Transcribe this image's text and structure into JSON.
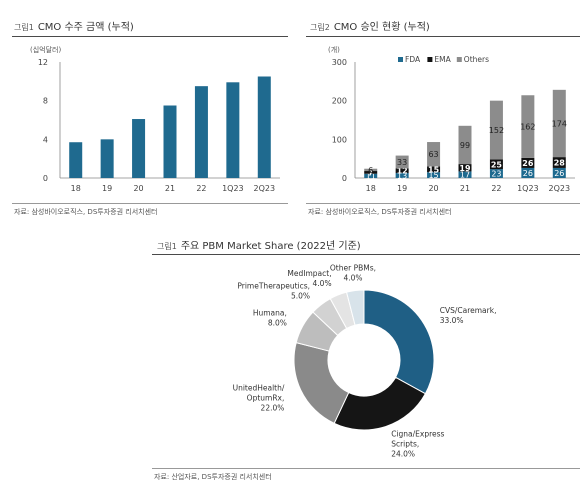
{
  "chart_data": [
    {
      "type": "bar",
      "figure_label": "그림1",
      "title": "CMO 수주 금액 (누적)",
      "unit_label": "(십억달러)",
      "categories": [
        "18",
        "19",
        "20",
        "21",
        "22",
        "1Q23",
        "2Q23"
      ],
      "values": [
        3.7,
        4.0,
        6.1,
        7.5,
        9.5,
        9.9,
        10.5
      ],
      "ylim": [
        0,
        12
      ],
      "yticks": [
        "0",
        "4",
        "8",
        "12"
      ],
      "bar_color": "#1f6a8f",
      "grid": false,
      "source": "자료: 삼성바이오로직스, DS투자증권 리서치센터"
    },
    {
      "type": "bar",
      "stacked": true,
      "figure_label": "그림2",
      "title": "CMO 승인 현황 (누적)",
      "unit_label": "(개)",
      "categories": [
        "18",
        "19",
        "20",
        "21",
        "22",
        "1Q23",
        "2Q23"
      ],
      "series": [
        {
          "name": "FDA",
          "color": "#1f6a8f",
          "values": [
            11,
            13,
            15,
            17,
            23,
            26,
            26
          ]
        },
        {
          "name": "EMA",
          "color": "#111111",
          "values": [
            7,
            12,
            15,
            19,
            25,
            26,
            28
          ]
        },
        {
          "name": "Others",
          "color": "#8c8c8c",
          "values": [
            6,
            33,
            63,
            99,
            152,
            162,
            174
          ]
        }
      ],
      "ylim": [
        0,
        300
      ],
      "yticks": [
        "0",
        "100",
        "200",
        "300"
      ],
      "legend_position": "top",
      "grid": false,
      "source": "자료: 삼성바이오로직스, DS투자증권 리서치센터"
    },
    {
      "type": "pie",
      "donut": true,
      "figure_label": "그림1",
      "title": "주요 PBM Market Share (2022년 기준)",
      "slices": [
        {
          "name": "CVS/Caremark,",
          "value": 33.0,
          "label": "33.0%",
          "color": "#1f5f85"
        },
        {
          "name": "Cigna/Express Scripts,",
          "value": 24.0,
          "label": "24.0%",
          "color": "#151515"
        },
        {
          "name": "UnitedHealth/ OptumRx,",
          "value": 22.0,
          "label": "22.0%",
          "color": "#8a8a8a"
        },
        {
          "name": "Humana,",
          "value": 8.0,
          "label": "8.0%",
          "color": "#bdbdbd"
        },
        {
          "name": "PrimeTherapeutics,",
          "value": 5.0,
          "label": "5.0%",
          "color": "#d2d2d2"
        },
        {
          "name": "MedImpact,",
          "value": 4.0,
          "label": "4.0%",
          "color": "#e4e4e4"
        },
        {
          "name": "Other PBMs,",
          "value": 4.0,
          "label": "4.0%",
          "color": "#d8e3ea"
        }
      ],
      "source": "자료: 산업자료, DS투자증권 리서치센터"
    }
  ]
}
